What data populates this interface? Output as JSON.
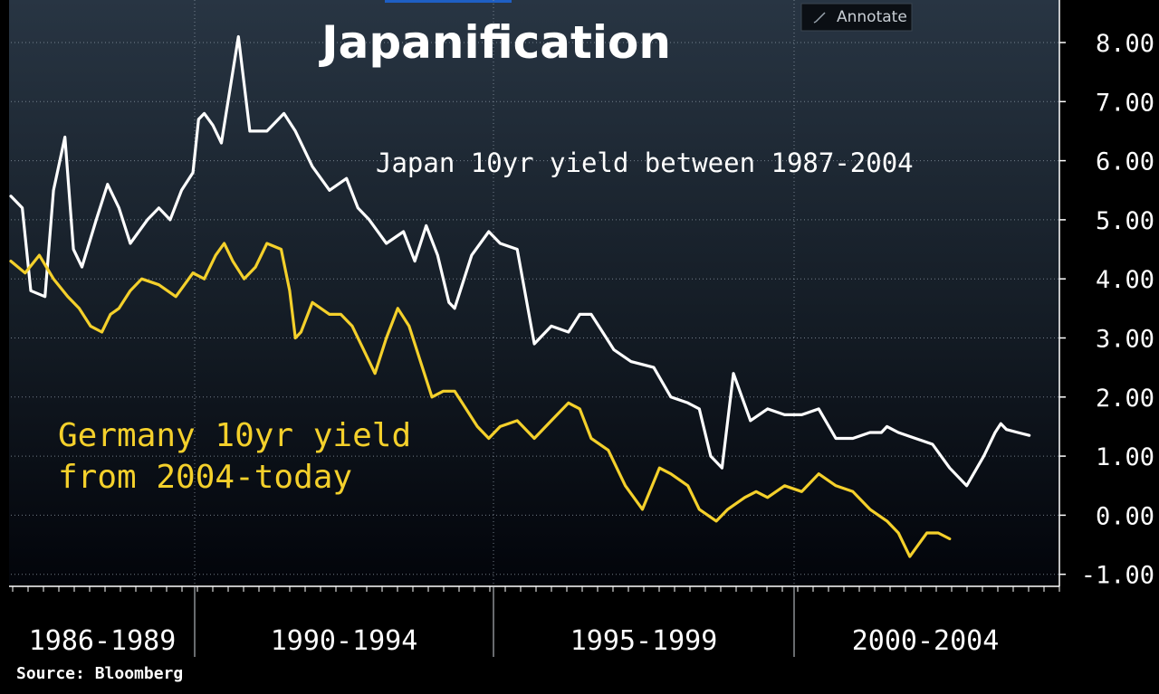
{
  "toolbar": {
    "annotate_label": "Annotate",
    "annotate_icon": "pencil-icon"
  },
  "colors": {
    "series_japan": "#ffffff",
    "series_germany": "#f4d02b",
    "background": "#000000"
  },
  "source": "Source: Bloomberg",
  "chart_data": {
    "type": "line",
    "title": "Japanification",
    "annotations": [
      {
        "name": "japan-annotation",
        "text": "Japan 10yr yield between 1987-2004",
        "lines": [
          "Japan 10yr yield between 1987-2004"
        ],
        "color": "#ffffff"
      },
      {
        "name": "germany-annotation",
        "text": "Germany 10yr yield from 2004-today",
        "lines": [
          "Germany 10yr yield",
          "from 2004-today"
        ],
        "color": "#f4d02b"
      }
    ],
    "x_categories": [
      "1986-1989",
      "1990-1994",
      "1995-1999",
      "2000-2004"
    ],
    "yticks": [
      "8.00",
      "7.00",
      "6.00",
      "5.00",
      "4.00",
      "3.00",
      "2.00",
      "1.00",
      "0.00",
      "-1.00"
    ],
    "ylim": [
      -1.2,
      8.6
    ],
    "y_axis_position": "right",
    "grid": true,
    "series": [
      {
        "key": "japan",
        "color": "#ffffff",
        "x": [
          0.0,
          0.2,
          0.35,
          0.6,
          0.75,
          0.95,
          1.1,
          1.25,
          1.5,
          1.7,
          1.9,
          2.1,
          2.4,
          2.6,
          2.8,
          3.0,
          3.2,
          3.3,
          3.4,
          3.55,
          3.7,
          3.85,
          4.0,
          4.2,
          4.5,
          4.8,
          5.0,
          5.3,
          5.6,
          5.9,
          6.1,
          6.3,
          6.6,
          6.9,
          7.1,
          7.3,
          7.5,
          7.7,
          7.8,
          8.1,
          8.4,
          8.6,
          8.9,
          9.2,
          9.5,
          9.8,
          10.0,
          10.2,
          10.4,
          10.6,
          10.9,
          11.3,
          11.6,
          11.9,
          12.1,
          12.3,
          12.5,
          12.7,
          13.0,
          13.3,
          13.6,
          13.9,
          14.2,
          14.5,
          14.8,
          15.1,
          15.3,
          15.4,
          15.6,
          15.9,
          16.2,
          16.5,
          16.8,
          17.1,
          17.3,
          17.4,
          17.5,
          17.7,
          17.9
        ],
        "y": [
          5.4,
          5.2,
          3.8,
          3.7,
          5.5,
          6.4,
          4.5,
          4.2,
          5.0,
          5.6,
          5.2,
          4.6,
          5.0,
          5.2,
          5.0,
          5.5,
          5.8,
          6.7,
          6.8,
          6.6,
          6.3,
          7.2,
          8.1,
          6.5,
          6.5,
          6.8,
          6.5,
          5.9,
          5.5,
          5.7,
          5.2,
          5.0,
          4.6,
          4.8,
          4.3,
          4.9,
          4.4,
          3.6,
          3.5,
          4.4,
          4.8,
          4.6,
          4.5,
          2.9,
          3.2,
          3.1,
          3.4,
          3.4,
          3.1,
          2.8,
          2.6,
          2.5,
          2.0,
          1.9,
          1.8,
          1.0,
          0.8,
          2.4,
          1.6,
          1.8,
          1.7,
          1.7,
          1.8,
          1.3,
          1.3,
          1.4,
          1.4,
          1.5,
          1.4,
          1.3,
          1.2,
          0.8,
          0.5,
          1.0,
          1.4,
          1.55,
          1.45,
          1.4,
          1.35
        ]
      },
      {
        "key": "germany",
        "color": "#f4d02b",
        "x": [
          0.0,
          0.25,
          0.5,
          0.75,
          1.0,
          1.2,
          1.4,
          1.6,
          1.75,
          1.9,
          2.1,
          2.3,
          2.6,
          2.9,
          3.2,
          3.4,
          3.6,
          3.75,
          3.9,
          4.1,
          4.3,
          4.5,
          4.75,
          4.9,
          5.0,
          5.1,
          5.3,
          5.6,
          5.8,
          6.0,
          6.2,
          6.4,
          6.6,
          6.8,
          7.0,
          7.2,
          7.4,
          7.6,
          7.8,
          8.0,
          8.2,
          8.4,
          8.6,
          8.9,
          9.2,
          9.5,
          9.8,
          10.0,
          10.2,
          10.5,
          10.8,
          11.1,
          11.4,
          11.6,
          11.9,
          12.1,
          12.4,
          12.6,
          12.9,
          13.1,
          13.3,
          13.6,
          13.9,
          14.2,
          14.5,
          14.8,
          15.1,
          15.4,
          15.6,
          15.8,
          15.95,
          16.1,
          16.3,
          16.5
        ],
        "y": [
          4.3,
          4.1,
          4.4,
          4.0,
          3.7,
          3.5,
          3.2,
          3.1,
          3.4,
          3.5,
          3.8,
          4.0,
          3.9,
          3.7,
          4.1,
          4.0,
          4.4,
          4.6,
          4.3,
          4.0,
          4.2,
          4.6,
          4.5,
          3.8,
          3.0,
          3.1,
          3.6,
          3.4,
          3.4,
          3.2,
          2.8,
          2.4,
          3.0,
          3.5,
          3.2,
          2.6,
          2.0,
          2.1,
          2.1,
          1.8,
          1.5,
          1.3,
          1.5,
          1.6,
          1.3,
          1.6,
          1.9,
          1.8,
          1.3,
          1.1,
          0.5,
          0.1,
          0.8,
          0.7,
          0.5,
          0.1,
          -0.1,
          0.1,
          0.3,
          0.4,
          0.3,
          0.5,
          0.4,
          0.7,
          0.5,
          0.4,
          0.1,
          -0.1,
          -0.3,
          -0.7,
          -0.5,
          -0.3,
          -0.3,
          -0.4
        ]
      }
    ]
  }
}
